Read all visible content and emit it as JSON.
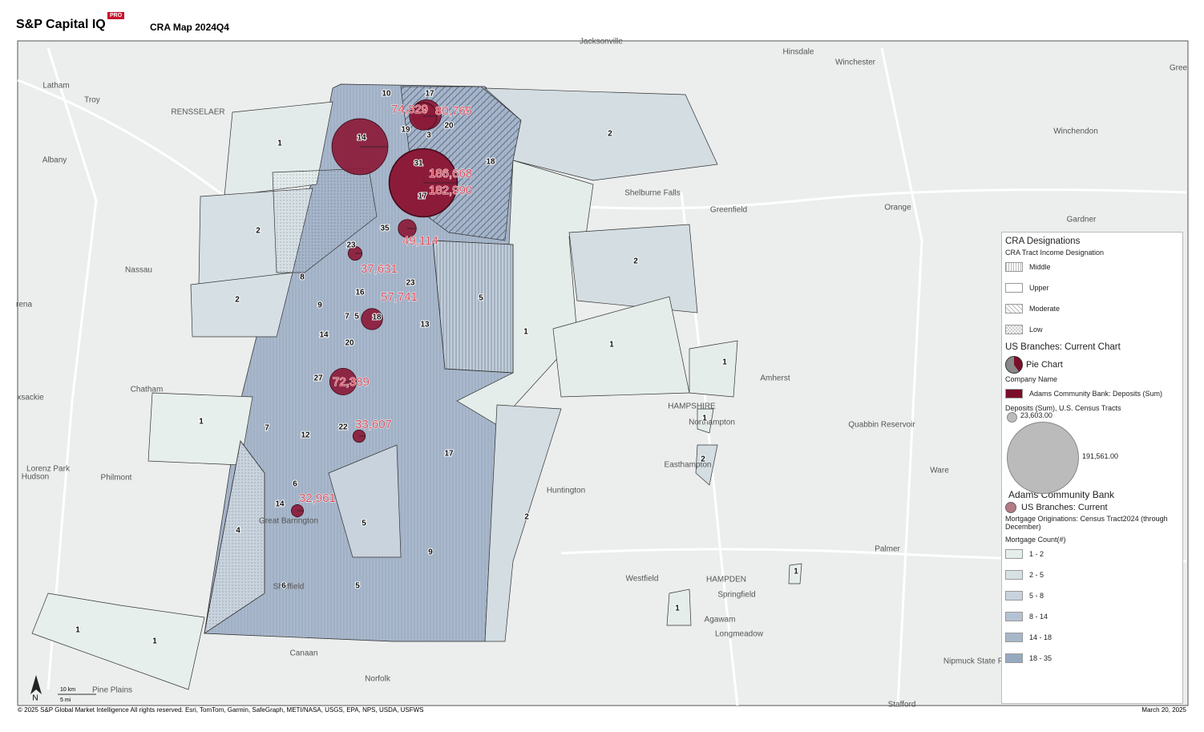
{
  "header": {
    "brand": "S&P Capital IQ",
    "badge": "PRO",
    "title": "CRA Map 2024Q4"
  },
  "map": {
    "places": [
      "Jacksonville",
      "Hinsdale",
      "Winchester",
      "Latham",
      "Troy",
      "RENSSELAER",
      "Albany",
      "Shelburne Falls",
      "Greenfield",
      "Orange",
      "Gardner",
      "Winchendon",
      "Gree",
      "Nassau",
      "rena",
      "Chatham",
      "xsackie",
      "Lorenz Park",
      "Hudson",
      "Philmont",
      "Amherst",
      "HAMPSHIRE",
      "Northampton",
      "Easthampton",
      "Quabbin Reservoir",
      "Ware",
      "Huntington",
      "Palmer",
      "Westfield",
      "HAMPDEN",
      "Springfield",
      "Agawam",
      "Longmeadow",
      "Canaan",
      "Norfolk",
      "Pine Plains",
      "Stafford",
      "Nipmuck State Forest",
      "Great Barrington",
      "Sheffield"
    ],
    "tracts": [
      1,
      2,
      2,
      1,
      1,
      1,
      4,
      6,
      5,
      9,
      5,
      2,
      17,
      7,
      12,
      22,
      6,
      14,
      27,
      14,
      20,
      9,
      8,
      16,
      5,
      7,
      18,
      23,
      13,
      5,
      1,
      1,
      1,
      1,
      2,
      1,
      1,
      2,
      2,
      18,
      31,
      17,
      35,
      23,
      14,
      10,
      17,
      19,
      3,
      20
    ],
    "branches": [
      {
        "deposits": 152000,
        "label": null
      },
      {
        "deposits": 80765,
        "label": "80,765"
      },
      {
        "deposits": 74829,
        "label": "74,829"
      },
      {
        "deposits": 186668,
        "label": "186,668"
      },
      {
        "deposits": 182990,
        "label": "182,990"
      },
      {
        "deposits": 49114,
        "label": "49,114"
      },
      {
        "deposits": 37631,
        "label": "37,631"
      },
      {
        "deposits": 57741,
        "label": "57,741"
      },
      {
        "deposits": 72389,
        "label": "72,389"
      },
      {
        "deposits": 33607,
        "label": "33,607"
      },
      {
        "deposits": 32961,
        "label": "32,961"
      }
    ],
    "scale": {
      "north": "N",
      "km": "10 km",
      "mi": "5 mi"
    }
  },
  "legend": {
    "title": "CRA Designations",
    "income_title": "CRA Tract Income Designation",
    "income": [
      "Middle",
      "Upper",
      "Moderate",
      "Low"
    ],
    "branches_title": "US Branches: Current Chart",
    "pie": "Pie Chart",
    "company_title": "Company Name",
    "company": "Adams Community Bank: Deposits (Sum)",
    "deposits_title": "Deposits (Sum), U.S. Census Tracts",
    "sizes": [
      {
        "value": 23603,
        "label": "23,603.00"
      },
      {
        "value": 191561,
        "label": "191,561.00"
      }
    ],
    "bank": "Adams Community Bank",
    "branches_item": "US Branches: Current",
    "mortgage_title": "Mortgage Originations: Census Tract2024 (through December)",
    "count_title": "Mortgage Count(#)",
    "classes": [
      {
        "label": "1 - 2",
        "color": "#e6eeec"
      },
      {
        "label": "2 - 5",
        "color": "#d7e1e3"
      },
      {
        "label": "5 - 8",
        "color": "#c8d3dd"
      },
      {
        "label": "8 - 14",
        "color": "#b4c3d3"
      },
      {
        "label": "14 - 18",
        "color": "#a7b7ca"
      },
      {
        "label": "18 - 35",
        "color": "#97a9c1"
      }
    ]
  },
  "footer": {
    "copyright": "© 2025 S&P Global Market Intelligence All rights reserved. Esri, TomTom, Garmin, SafeGraph, METI/NASA, USGS, EPA, NPS, USDA, USFWS",
    "date": "March 20, 2025"
  }
}
